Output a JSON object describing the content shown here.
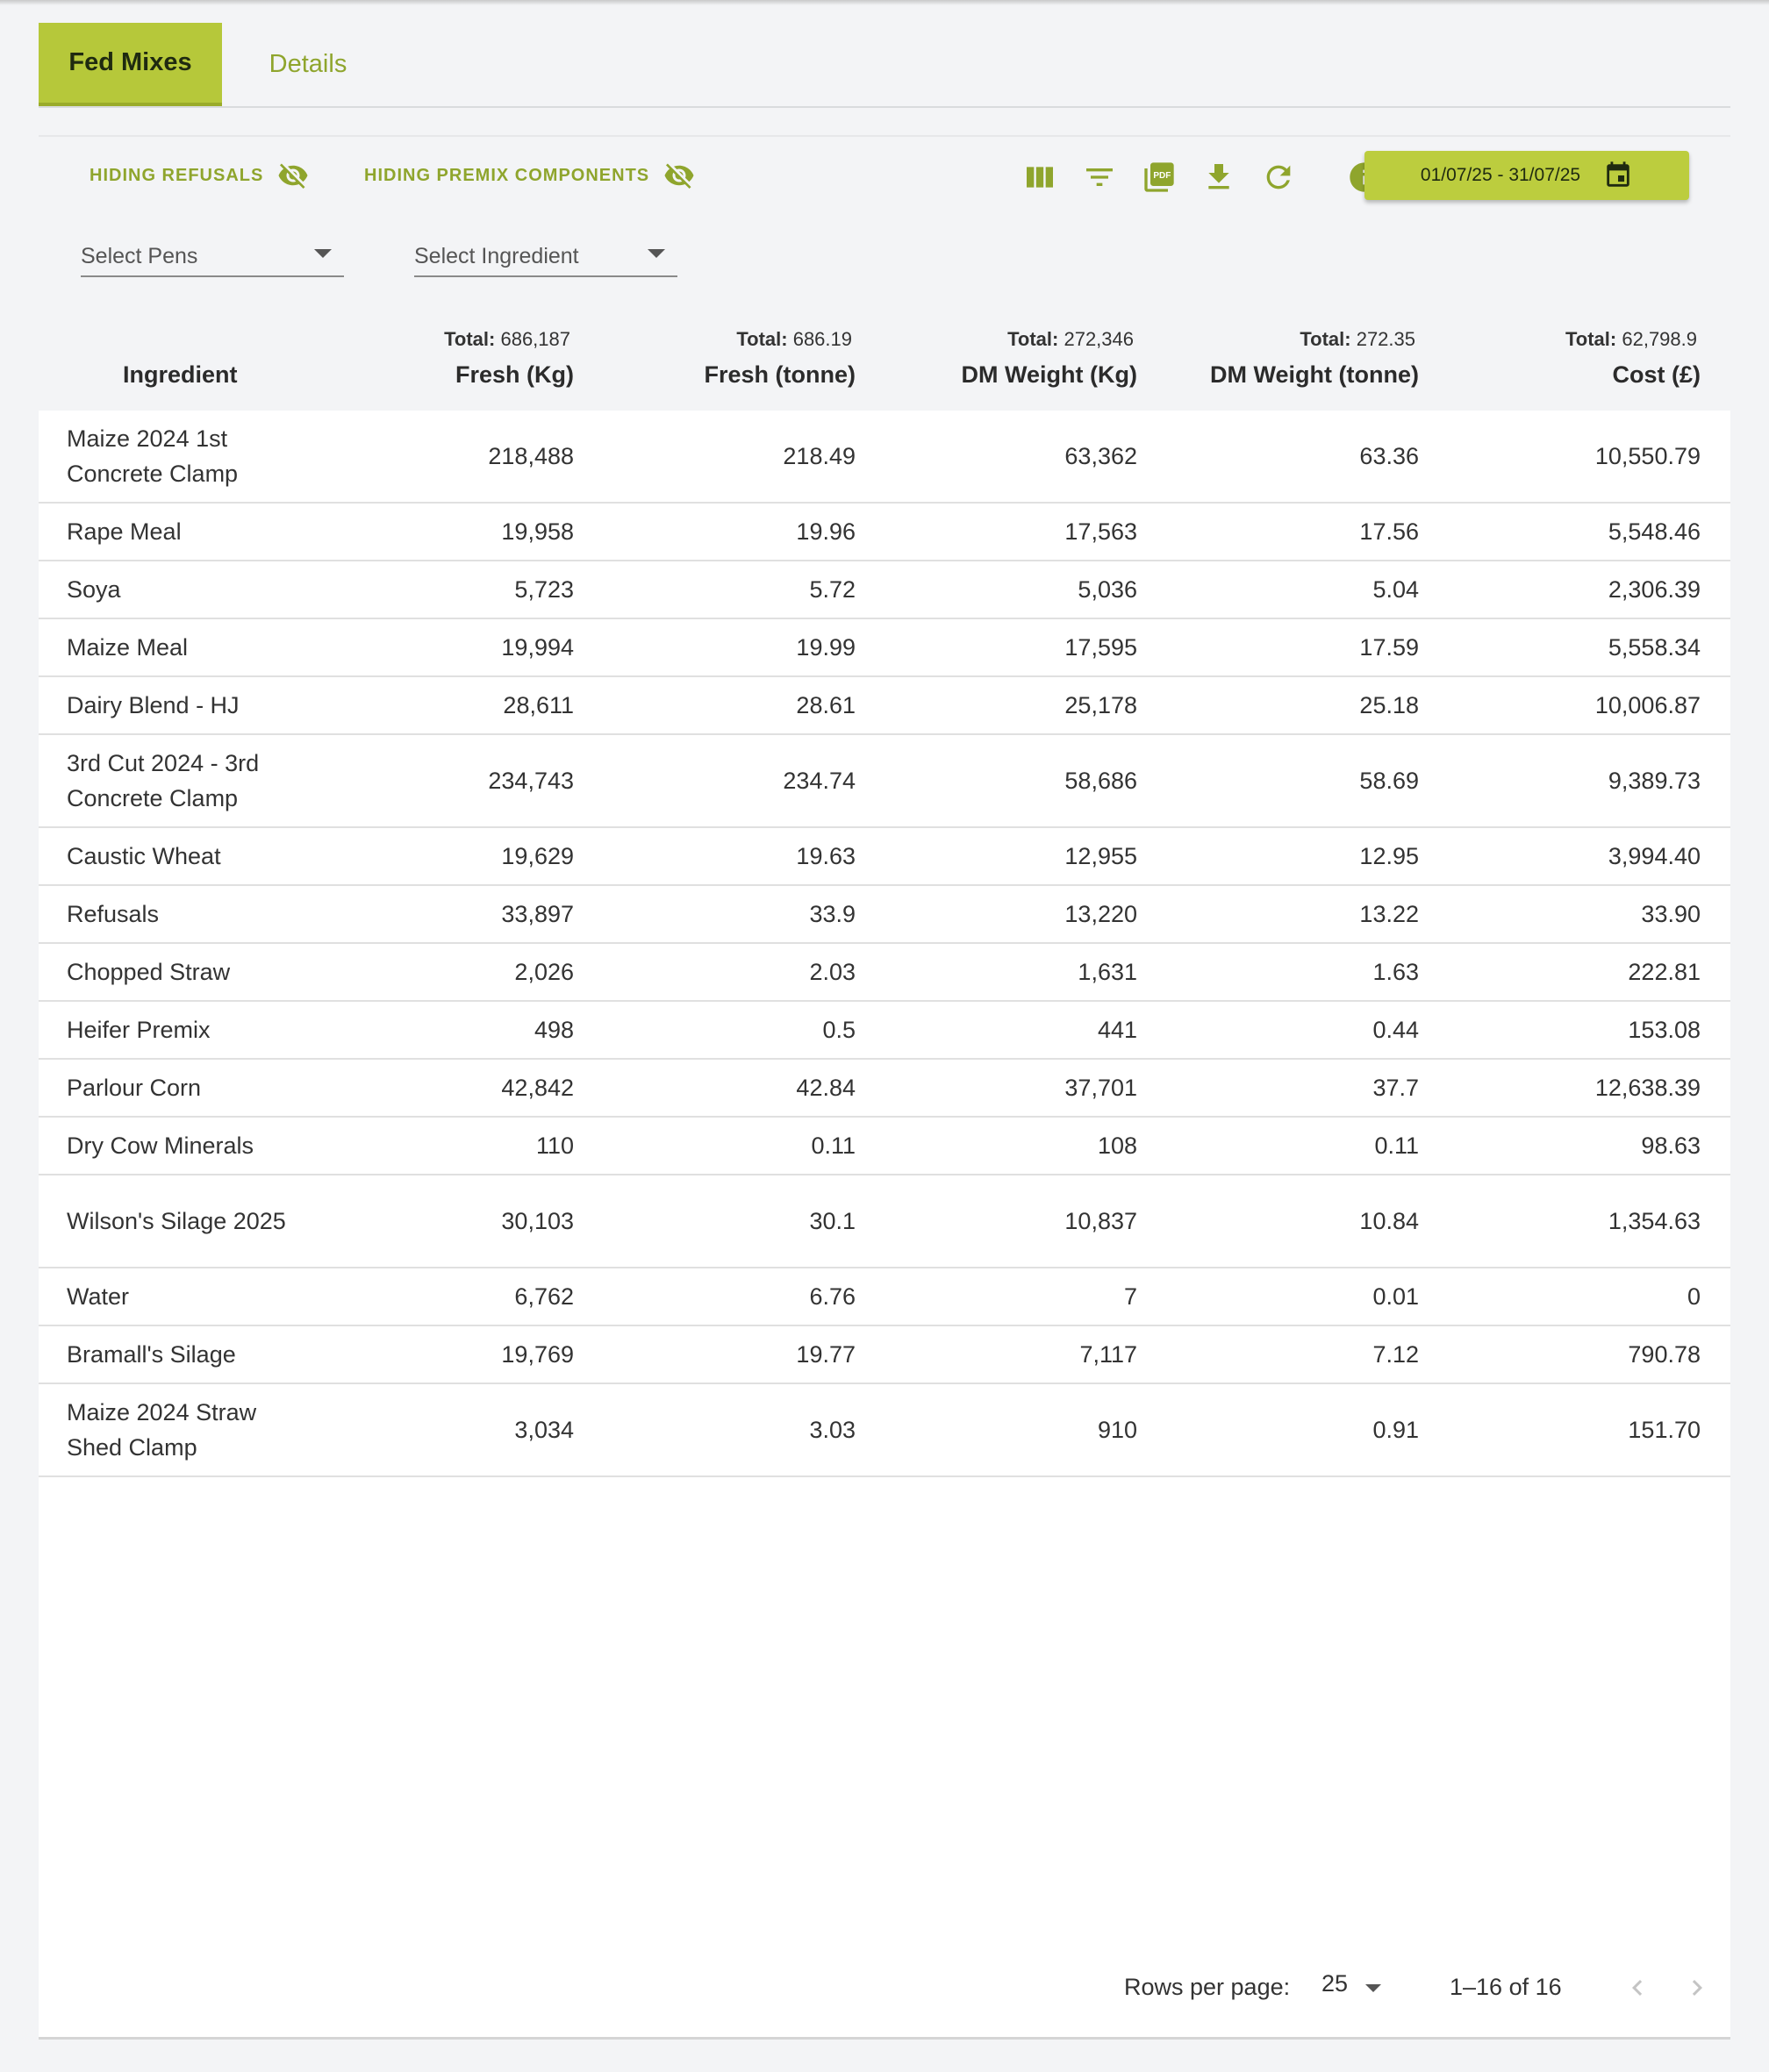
{
  "tabs": [
    {
      "label": "Fed Mixes",
      "active": true
    },
    {
      "label": "Details",
      "active": false
    }
  ],
  "toggles": {
    "refusals_label": "HIDING REFUSALS",
    "premix_label": "HIDING PREMIX COMPONENTS"
  },
  "date_range": "01/07/25 - 31/07/25",
  "filters": {
    "pens_placeholder": "Select Pens",
    "ingredient_placeholder": "Select Ingredient"
  },
  "table": {
    "total_label": "Total:",
    "columns": [
      {
        "label": "Ingredient",
        "total": ""
      },
      {
        "label": "Fresh (Kg)",
        "total": "686,187"
      },
      {
        "label": "Fresh (tonne)",
        "total": "686.19"
      },
      {
        "label": "DM Weight (Kg)",
        "total": "272,346"
      },
      {
        "label": "DM Weight (tonne)",
        "total": "272.35"
      },
      {
        "label": "Cost (£)",
        "total": "62,798.9"
      }
    ],
    "rows": [
      {
        "ingredient": "Maize 2024 1st Concrete Clamp",
        "fresh_kg": "218,488",
        "fresh_t": "218.49",
        "dm_kg": "63,362",
        "dm_t": "63.36",
        "cost": "10,550.79"
      },
      {
        "ingredient": "Rape Meal",
        "fresh_kg": "19,958",
        "fresh_t": "19.96",
        "dm_kg": "17,563",
        "dm_t": "17.56",
        "cost": "5,548.46"
      },
      {
        "ingredient": "Soya",
        "fresh_kg": "5,723",
        "fresh_t": "5.72",
        "dm_kg": "5,036",
        "dm_t": "5.04",
        "cost": "2,306.39"
      },
      {
        "ingredient": "Maize Meal",
        "fresh_kg": "19,994",
        "fresh_t": "19.99",
        "dm_kg": "17,595",
        "dm_t": "17.59",
        "cost": "5,558.34"
      },
      {
        "ingredient": "Dairy Blend - HJ",
        "fresh_kg": "28,611",
        "fresh_t": "28.61",
        "dm_kg": "25,178",
        "dm_t": "25.18",
        "cost": "10,006.87"
      },
      {
        "ingredient": "3rd Cut 2024 - 3rd Concrete Clamp",
        "fresh_kg": "234,743",
        "fresh_t": "234.74",
        "dm_kg": "58,686",
        "dm_t": "58.69",
        "cost": "9,389.73"
      },
      {
        "ingredient": "Caustic Wheat",
        "fresh_kg": "19,629",
        "fresh_t": "19.63",
        "dm_kg": "12,955",
        "dm_t": "12.95",
        "cost": "3,994.40"
      },
      {
        "ingredient": "Refusals",
        "fresh_kg": "33,897",
        "fresh_t": "33.9",
        "dm_kg": "13,220",
        "dm_t": "13.22",
        "cost": "33.90"
      },
      {
        "ingredient": "Chopped Straw",
        "fresh_kg": "2,026",
        "fresh_t": "2.03",
        "dm_kg": "1,631",
        "dm_t": "1.63",
        "cost": "222.81"
      },
      {
        "ingredient": "Heifer Premix",
        "fresh_kg": "498",
        "fresh_t": "0.5",
        "dm_kg": "441",
        "dm_t": "0.44",
        "cost": "153.08"
      },
      {
        "ingredient": "Parlour Corn",
        "fresh_kg": "42,842",
        "fresh_t": "42.84",
        "dm_kg": "37,701",
        "dm_t": "37.7",
        "cost": "12,638.39"
      },
      {
        "ingredient": "Dry Cow Minerals",
        "fresh_kg": "110",
        "fresh_t": "0.11",
        "dm_kg": "108",
        "dm_t": "0.11",
        "cost": "98.63"
      },
      {
        "ingredient": "Wilson's Silage 2025",
        "fresh_kg": "30,103",
        "fresh_t": "30.1",
        "dm_kg": "10,837",
        "dm_t": "10.84",
        "cost": "1,354.63"
      },
      {
        "ingredient": "Water",
        "fresh_kg": "6,762",
        "fresh_t": "6.76",
        "dm_kg": "7",
        "dm_t": "0.01",
        "cost": "0"
      },
      {
        "ingredient": "Bramall's Silage",
        "fresh_kg": "19,769",
        "fresh_t": "19.77",
        "dm_kg": "7,117",
        "dm_t": "7.12",
        "cost": "790.78"
      },
      {
        "ingredient": "Maize 2024 Straw Shed Clamp",
        "fresh_kg": "3,034",
        "fresh_t": "3.03",
        "dm_kg": "910",
        "dm_t": "0.91",
        "cost": "151.70"
      }
    ]
  },
  "pagination": {
    "rows_per_page_label": "Rows per page:",
    "rows_per_page": "25",
    "range": "1–16 of 16"
  },
  "icons": {
    "columns": "view-column-icon",
    "filter": "filter-list-icon",
    "pdf": "pdf-icon",
    "download": "download-icon",
    "refresh": "refresh-icon",
    "info": "info-icon",
    "calendar": "calendar-icon",
    "visibility_off": "visibility-off-icon"
  },
  "colors": {
    "accent": "#b6c83a",
    "accent_text": "#8fa52d"
  }
}
